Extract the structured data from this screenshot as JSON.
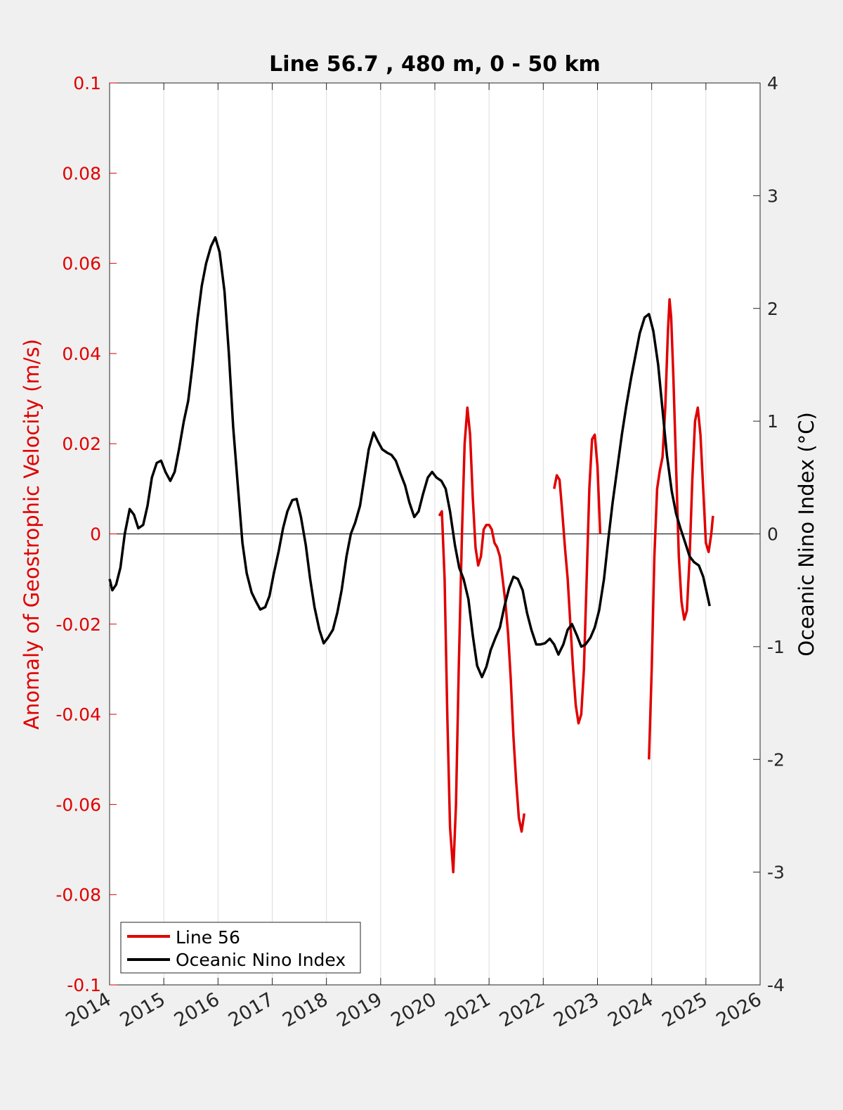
{
  "chart_data": {
    "type": "line",
    "title": "Line 56.7 , 480 m, 0 - 50 km",
    "xlabel": "",
    "ylabel_left": "Anomaly of Geostrophic Velocity (m/s)",
    "ylabel_right": "Oceanic Nino Index (°C)",
    "xlim": [
      2014,
      2026
    ],
    "ylim_left": [
      -0.1,
      0.1
    ],
    "ylim_right": [
      -4,
      4
    ],
    "x_ticks": [
      "2014",
      "2015",
      "2016",
      "2017",
      "2018",
      "2019",
      "2020",
      "2021",
      "2022",
      "2023",
      "2024",
      "2025",
      "2026"
    ],
    "y_ticks_left": [
      "0.1",
      "0.08",
      "0.06",
      "0.04",
      "0.02",
      "0",
      "-0.02",
      "-0.04",
      "-0.06",
      "-0.08",
      "-0.1"
    ],
    "y_ticks_right": [
      "4",
      "3",
      "2",
      "1",
      "0",
      "-1",
      "-2",
      "-3",
      "-4"
    ],
    "grid": "vertical",
    "legend_position": "bottom-left",
    "colors": {
      "line56": "#e00000",
      "oni": "#000000",
      "left_axis": "#e00000",
      "right_axis": "#000000"
    },
    "series": [
      {
        "name": "Line 56",
        "axis": "left",
        "segments": [
          [
            [
              2020.08,
              0.004
            ],
            [
              2020.13,
              0.005
            ],
            [
              2020.18,
              -0.01
            ],
            [
              2020.23,
              -0.04
            ],
            [
              2020.28,
              -0.065
            ],
            [
              2020.34,
              -0.075
            ],
            [
              2020.39,
              -0.06
            ],
            [
              2020.44,
              -0.03
            ],
            [
              2020.5,
              0.0
            ],
            [
              2020.55,
              0.02
            ],
            [
              2020.6,
              0.028
            ],
            [
              2020.65,
              0.022
            ],
            [
              2020.7,
              0.008
            ],
            [
              2020.75,
              -0.003
            ],
            [
              2020.8,
              -0.007
            ],
            [
              2020.85,
              -0.005
            ],
            [
              2020.9,
              0.001
            ],
            [
              2020.95,
              0.002
            ],
            [
              2021.0,
              0.002
            ],
            [
              2021.05,
              0.001
            ],
            [
              2021.1,
              -0.002
            ],
            [
              2021.15,
              -0.003
            ],
            [
              2021.2,
              -0.005
            ],
            [
              2021.25,
              -0.01
            ],
            [
              2021.3,
              -0.015
            ],
            [
              2021.35,
              -0.022
            ],
            [
              2021.4,
              -0.032
            ],
            [
              2021.45,
              -0.045
            ],
            [
              2021.5,
              -0.055
            ],
            [
              2021.55,
              -0.063
            ],
            [
              2021.6,
              -0.066
            ],
            [
              2021.65,
              -0.062
            ]
          ],
          [
            [
              2022.2,
              0.01
            ],
            [
              2022.25,
              0.013
            ],
            [
              2022.3,
              0.012
            ],
            [
              2022.35,
              0.005
            ],
            [
              2022.4,
              -0.003
            ],
            [
              2022.45,
              -0.01
            ],
            [
              2022.5,
              -0.02
            ],
            [
              2022.55,
              -0.03
            ],
            [
              2022.6,
              -0.038
            ],
            [
              2022.65,
              -0.042
            ],
            [
              2022.7,
              -0.04
            ],
            [
              2022.75,
              -0.03
            ],
            [
              2022.8,
              -0.01
            ],
            [
              2022.85,
              0.01
            ],
            [
              2022.9,
              0.021
            ],
            [
              2022.95,
              0.022
            ],
            [
              2023.0,
              0.015
            ],
            [
              2023.05,
              0.0
            ]
          ],
          [
            [
              2023.95,
              -0.05
            ],
            [
              2024.0,
              -0.03
            ],
            [
              2024.05,
              -0.005
            ],
            [
              2024.1,
              0.01
            ],
            [
              2024.15,
              0.014
            ],
            [
              2024.2,
              0.017
            ],
            [
              2024.25,
              0.028
            ],
            [
              2024.3,
              0.045
            ],
            [
              2024.33,
              0.052
            ],
            [
              2024.36,
              0.048
            ],
            [
              2024.4,
              0.035
            ],
            [
              2024.45,
              0.015
            ],
            [
              2024.5,
              -0.005
            ],
            [
              2024.55,
              -0.015
            ],
            [
              2024.6,
              -0.019
            ],
            [
              2024.65,
              -0.017
            ],
            [
              2024.7,
              -0.005
            ],
            [
              2024.75,
              0.012
            ],
            [
              2024.8,
              0.025
            ],
            [
              2024.85,
              0.028
            ],
            [
              2024.9,
              0.022
            ],
            [
              2024.95,
              0.01
            ],
            [
              2025.0,
              -0.002
            ],
            [
              2025.05,
              -0.004
            ],
            [
              2025.1,
              0.0
            ],
            [
              2025.13,
              0.004
            ]
          ]
        ]
      },
      {
        "name": "Oceanic Nino Index",
        "axis": "right",
        "points": [
          [
            2014.0,
            -0.4
          ],
          [
            2014.05,
            -0.5
          ],
          [
            2014.12,
            -0.45
          ],
          [
            2014.2,
            -0.3
          ],
          [
            2014.28,
            0.0
          ],
          [
            2014.37,
            0.22
          ],
          [
            2014.45,
            0.17
          ],
          [
            2014.53,
            0.05
          ],
          [
            2014.62,
            0.08
          ],
          [
            2014.7,
            0.25
          ],
          [
            2014.78,
            0.5
          ],
          [
            2014.87,
            0.63
          ],
          [
            2014.95,
            0.65
          ],
          [
            2015.03,
            0.55
          ],
          [
            2015.12,
            0.47
          ],
          [
            2015.2,
            0.55
          ],
          [
            2015.28,
            0.75
          ],
          [
            2015.37,
            1.0
          ],
          [
            2015.45,
            1.18
          ],
          [
            2015.53,
            1.5
          ],
          [
            2015.62,
            1.9
          ],
          [
            2015.7,
            2.2
          ],
          [
            2015.78,
            2.4
          ],
          [
            2015.87,
            2.55
          ],
          [
            2015.95,
            2.63
          ],
          [
            2016.03,
            2.5
          ],
          [
            2016.12,
            2.15
          ],
          [
            2016.2,
            1.6
          ],
          [
            2016.28,
            0.95
          ],
          [
            2016.37,
            0.4
          ],
          [
            2016.45,
            -0.08
          ],
          [
            2016.53,
            -0.35
          ],
          [
            2016.62,
            -0.52
          ],
          [
            2016.7,
            -0.6
          ],
          [
            2016.78,
            -0.67
          ],
          [
            2016.87,
            -0.65
          ],
          [
            2016.95,
            -0.55
          ],
          [
            2017.03,
            -0.35
          ],
          [
            2017.12,
            -0.15
          ],
          [
            2017.2,
            0.05
          ],
          [
            2017.28,
            0.2
          ],
          [
            2017.37,
            0.3
          ],
          [
            2017.45,
            0.31
          ],
          [
            2017.53,
            0.15
          ],
          [
            2017.62,
            -0.1
          ],
          [
            2017.7,
            -0.4
          ],
          [
            2017.78,
            -0.65
          ],
          [
            2017.87,
            -0.85
          ],
          [
            2017.95,
            -0.97
          ],
          [
            2018.03,
            -0.92
          ],
          [
            2018.12,
            -0.85
          ],
          [
            2018.2,
            -0.7
          ],
          [
            2018.28,
            -0.5
          ],
          [
            2018.37,
            -0.2
          ],
          [
            2018.45,
            0.0
          ],
          [
            2018.53,
            0.1
          ],
          [
            2018.62,
            0.25
          ],
          [
            2018.7,
            0.5
          ],
          [
            2018.78,
            0.75
          ],
          [
            2018.87,
            0.9
          ],
          [
            2018.95,
            0.82
          ],
          [
            2019.03,
            0.75
          ],
          [
            2019.12,
            0.72
          ],
          [
            2019.2,
            0.7
          ],
          [
            2019.28,
            0.65
          ],
          [
            2019.37,
            0.53
          ],
          [
            2019.45,
            0.43
          ],
          [
            2019.53,
            0.28
          ],
          [
            2019.62,
            0.15
          ],
          [
            2019.7,
            0.2
          ],
          [
            2019.78,
            0.35
          ],
          [
            2019.87,
            0.5
          ],
          [
            2019.95,
            0.55
          ],
          [
            2020.03,
            0.5
          ],
          [
            2020.12,
            0.47
          ],
          [
            2020.2,
            0.4
          ],
          [
            2020.28,
            0.2
          ],
          [
            2020.37,
            -0.1
          ],
          [
            2020.45,
            -0.3
          ],
          [
            2020.53,
            -0.4
          ],
          [
            2020.62,
            -0.58
          ],
          [
            2020.7,
            -0.9
          ],
          [
            2020.78,
            -1.17
          ],
          [
            2020.87,
            -1.27
          ],
          [
            2020.95,
            -1.18
          ],
          [
            2021.03,
            -1.03
          ],
          [
            2021.12,
            -0.92
          ],
          [
            2021.2,
            -0.83
          ],
          [
            2021.28,
            -0.65
          ],
          [
            2021.37,
            -0.48
          ],
          [
            2021.45,
            -0.38
          ],
          [
            2021.53,
            -0.4
          ],
          [
            2021.62,
            -0.5
          ],
          [
            2021.7,
            -0.7
          ],
          [
            2021.78,
            -0.85
          ],
          [
            2021.87,
            -0.98
          ],
          [
            2021.95,
            -0.98
          ],
          [
            2022.03,
            -0.97
          ],
          [
            2022.12,
            -0.93
          ],
          [
            2022.2,
            -0.98
          ],
          [
            2022.28,
            -1.07
          ],
          [
            2022.37,
            -0.98
          ],
          [
            2022.45,
            -0.85
          ],
          [
            2022.53,
            -0.8
          ],
          [
            2022.62,
            -0.9
          ],
          [
            2022.7,
            -1.0
          ],
          [
            2022.78,
            -0.98
          ],
          [
            2022.87,
            -0.92
          ],
          [
            2022.95,
            -0.83
          ],
          [
            2023.03,
            -0.68
          ],
          [
            2023.12,
            -0.4
          ],
          [
            2023.2,
            -0.05
          ],
          [
            2023.28,
            0.28
          ],
          [
            2023.37,
            0.6
          ],
          [
            2023.45,
            0.88
          ],
          [
            2023.53,
            1.13
          ],
          [
            2023.62,
            1.38
          ],
          [
            2023.7,
            1.58
          ],
          [
            2023.78,
            1.78
          ],
          [
            2023.87,
            1.92
          ],
          [
            2023.95,
            1.95
          ],
          [
            2024.03,
            1.8
          ],
          [
            2024.12,
            1.5
          ],
          [
            2024.2,
            1.1
          ],
          [
            2024.28,
            0.7
          ],
          [
            2024.37,
            0.38
          ],
          [
            2024.45,
            0.18
          ],
          [
            2024.53,
            0.05
          ],
          [
            2024.62,
            -0.08
          ],
          [
            2024.7,
            -0.2
          ],
          [
            2024.78,
            -0.25
          ],
          [
            2024.87,
            -0.28
          ],
          [
            2024.95,
            -0.38
          ],
          [
            2025.03,
            -0.55
          ],
          [
            2025.07,
            -0.64
          ]
        ]
      }
    ],
    "legend": [
      "Line 56",
      "Oceanic Nino Index"
    ]
  }
}
